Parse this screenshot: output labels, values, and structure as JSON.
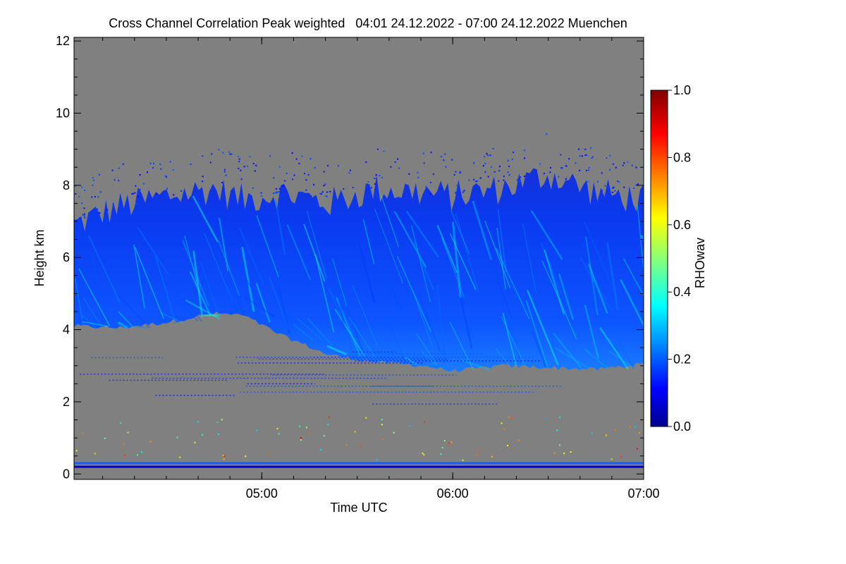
{
  "chart_data": {
    "type": "heatmap",
    "title": "Cross Channel Correlation Peak weighted   04:01 24.12.2022 - 07:00 24.12.2022 Muenchen",
    "xlabel": "Time UTC",
    "ylabel": "Height km",
    "x_ticks": [
      {
        "value": 5.0,
        "label": "05:00"
      },
      {
        "value": 6.0,
        "label": "06:00"
      },
      {
        "value": 7.0,
        "label": "07:00"
      }
    ],
    "xlim_hours": [
      4.0167,
      7.0
    ],
    "y_ticks": [
      0,
      2,
      4,
      6,
      8,
      10,
      12
    ],
    "ylim": [
      -0.15,
      12.1
    ],
    "colorbar": {
      "label": "RHOwav",
      "range": [
        0.0,
        1.0
      ],
      "ticks": [
        "0.0",
        "0.2",
        "0.4",
        "0.6",
        "0.8",
        "1.0"
      ],
      "colormap": "jet"
    },
    "background_color": "#808080",
    "cloud_layer": {
      "time_hours": [
        4.0167,
        4.25,
        4.5,
        4.75,
        4.9,
        5.1,
        5.35,
        5.6,
        5.85,
        6.0,
        6.25,
        6.5,
        6.75,
        7.0
      ],
      "base_km": [
        4.1,
        4.05,
        4.2,
        4.45,
        4.4,
        3.85,
        3.3,
        3.1,
        3.0,
        2.85,
        3.0,
        2.95,
        2.9,
        3.05
      ],
      "top_km": [
        6.9,
        7.4,
        7.7,
        7.9,
        7.6,
        7.8,
        7.5,
        7.9,
        7.8,
        7.7,
        7.9,
        8.3,
        7.8,
        7.6
      ],
      "typical_value": 0.2,
      "max_value": 0.4
    },
    "surface_layer": {
      "heights_km": [
        0.2,
        0.3
      ],
      "typical_value": 0.15
    }
  }
}
